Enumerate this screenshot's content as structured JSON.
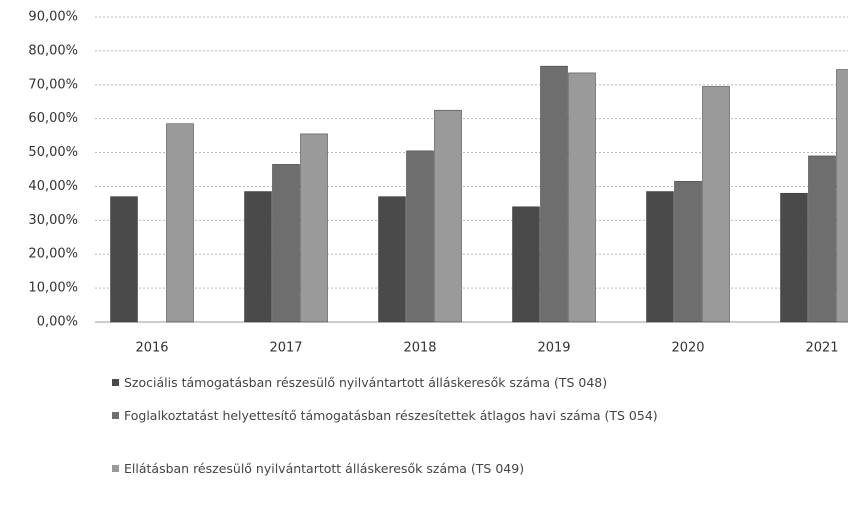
{
  "chart_data": {
    "type": "bar",
    "categories": [
      "2016",
      "2017",
      "2018",
      "2019",
      "2020",
      "2021"
    ],
    "series": [
      {
        "name": "Szociális támogatásban részesülő nyilvántartott álláskeresők száma (TS 048)",
        "color": "#4a4a4a",
        "values": [
          37,
          38.5,
          37,
          34,
          38.5,
          38
        ]
      },
      {
        "name": "Foglalkoztatást helyettesítő támogatásban részesítettek átlagos havi száma (TS 054)",
        "color": "#6e6e6e",
        "values": [
          null,
          46.5,
          50.5,
          75.5,
          41.5,
          49
        ]
      },
      {
        "name": "Ellátásban részesülő nyilvántartott álláskeresők száma (TS 049)",
        "color": "#9a9a9a",
        "values": [
          58.5,
          55.5,
          62.5,
          73.5,
          69.5,
          74.5
        ]
      }
    ],
    "ylim": [
      0,
      90
    ],
    "yticks": [
      {
        "value": 0,
        "label": "0,00%"
      },
      {
        "value": 10,
        "label": "10,00%"
      },
      {
        "value": 20,
        "label": "20,00%"
      },
      {
        "value": 30,
        "label": "30,00%"
      },
      {
        "value": 40,
        "label": "40,00%"
      },
      {
        "value": 50,
        "label": "50,00%"
      },
      {
        "value": 60,
        "label": "60,00%"
      },
      {
        "value": 70,
        "label": "70,00%"
      },
      {
        "value": 80,
        "label": "80,00%"
      },
      {
        "value": 90,
        "label": "90,00%"
      }
    ],
    "grid": true
  }
}
